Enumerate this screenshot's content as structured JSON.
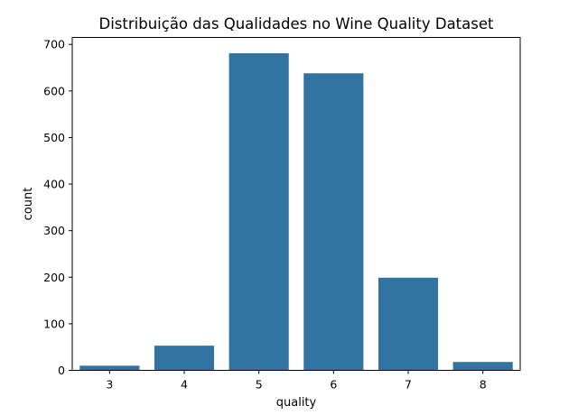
{
  "chart_data": {
    "type": "bar",
    "title": "Distribuição das Qualidades no Wine Quality Dataset",
    "xlabel": "quality",
    "ylabel": "count",
    "categories": [
      "3",
      "4",
      "5",
      "6",
      "7",
      "8"
    ],
    "values": [
      10,
      53,
      681,
      638,
      199,
      18
    ],
    "ylim": [
      0,
      715
    ],
    "yticks": [
      0,
      100,
      200,
      300,
      400,
      500,
      600,
      700
    ],
    "ytick_labels": [
      "0",
      "100",
      "200",
      "300",
      "400",
      "500",
      "600",
      "700"
    ],
    "grid": false,
    "bar_color": "#3274a1"
  }
}
